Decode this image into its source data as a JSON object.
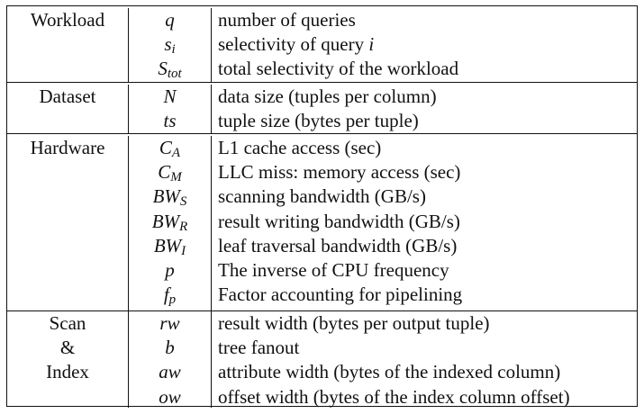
{
  "sections": [
    {
      "category": [
        "Workload"
      ],
      "rows": [
        {
          "sym": "q",
          "sub": "",
          "desc": "number of queries"
        },
        {
          "sym": "s",
          "sub": "i",
          "desc": "selectivity of query",
          "desc_var": "i"
        },
        {
          "sym": "S",
          "sub": "tot",
          "desc": "total selectivity of the workload"
        }
      ]
    },
    {
      "category": [
        "Dataset"
      ],
      "rows": [
        {
          "sym": "N",
          "sub": "",
          "desc": "data size (tuples per column)"
        },
        {
          "sym": "ts",
          "sub": "",
          "desc": "tuple size (bytes per tuple)"
        }
      ]
    },
    {
      "category": [
        "Hardware"
      ],
      "rows": [
        {
          "sym": "C",
          "sub": "A",
          "desc": "L1 cache access (sec)"
        },
        {
          "sym": "C",
          "sub": "M",
          "desc": "LLC miss: memory access (sec)"
        },
        {
          "sym": "BW",
          "sub": "S",
          "desc": "scanning bandwidth (GB/s)"
        },
        {
          "sym": "BW",
          "sub": "R",
          "desc": "result writing bandwidth (GB/s)"
        },
        {
          "sym": "BW",
          "sub": "I",
          "desc": "leaf traversal bandwidth (GB/s)"
        },
        {
          "sym": "p",
          "sub": "",
          "desc": "The inverse of CPU frequency"
        },
        {
          "sym": "f",
          "sub": "p",
          "desc": "Factor accounting for pipelining"
        }
      ]
    },
    {
      "category": [
        "Scan",
        "&",
        "Index"
      ],
      "rows": [
        {
          "sym": "rw",
          "sub": "",
          "desc": "result width (bytes per output tuple)"
        },
        {
          "sym": "b",
          "sub": "",
          "desc": "tree fanout"
        },
        {
          "sym": "aw",
          "sub": "",
          "desc": "attribute width (bytes of the indexed column)"
        },
        {
          "sym": "ow",
          "sub": "",
          "desc": "offset width (bytes of the index column offset)"
        }
      ]
    }
  ]
}
